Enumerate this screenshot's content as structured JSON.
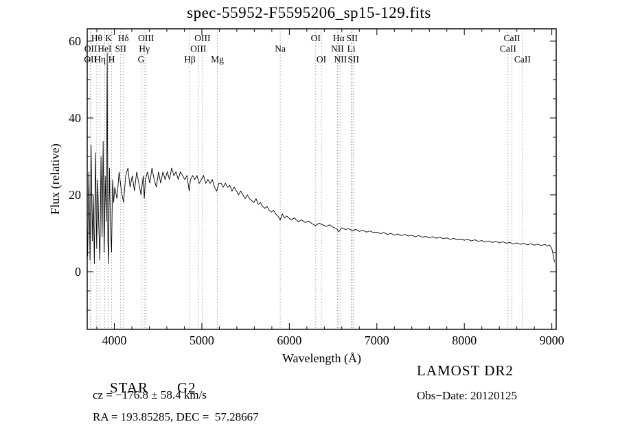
{
  "title": "spec-55952-F5595206_sp15-129.fits",
  "footer": {
    "classification": "STAR",
    "subclass": "G2",
    "survey": "LAMOST DR2",
    "cz": "cz = −176.8 ± 58.4 km/s",
    "obs_date": "Obs−Date: 20120125",
    "ra_dec": "RA = 193.85285, DEC =  57.28667"
  },
  "chart_data": {
    "type": "line",
    "title": "spec-55952-F5595206_sp15-129.fits",
    "xlabel": "Wavelength (Å)",
    "ylabel": "Flux (relative)",
    "xlim": [
      3690,
      9050
    ],
    "ylim": [
      -15,
      63.2
    ],
    "x_ticks": [
      4000,
      5000,
      6000,
      7000,
      8000,
      9000
    ],
    "y_ticks": [
      0,
      20,
      40,
      60
    ],
    "grid": false,
    "line_color": "#000000",
    "marker_line_color": "#999999",
    "legend": "none",
    "spectral_lines": [
      {
        "label": "OII",
        "wavelength": 3727,
        "row": 3
      },
      {
        "label": "OII",
        "wavelength": 3730,
        "row": 2
      },
      {
        "label": "Hθ",
        "wavelength": 3799,
        "row": 1
      },
      {
        "label": "Hη",
        "wavelength": 3836,
        "row": 3
      },
      {
        "label": "HeI",
        "wavelength": 3889,
        "row": 2
      },
      {
        "label": "K",
        "wavelength": 3934,
        "row": 1
      },
      {
        "label": "H",
        "wavelength": 3969,
        "row": 3
      },
      {
        "label": "SII",
        "wavelength": 4072,
        "row": 2
      },
      {
        "label": "Hδ",
        "wavelength": 4103,
        "row": 1
      },
      {
        "label": "G",
        "wavelength": 4306,
        "row": 3
      },
      {
        "label": "Hγ",
        "wavelength": 4342,
        "row": 2
      },
      {
        "label": "OIII",
        "wavelength": 4363,
        "row": 1
      },
      {
        "label": "Hβ",
        "wavelength": 4863,
        "row": 3
      },
      {
        "label": "OIII",
        "wavelength": 4960,
        "row": 2
      },
      {
        "label": "OIII",
        "wavelength": 5008,
        "row": 1
      },
      {
        "label": "Mg",
        "wavelength": 5177,
        "row": 3
      },
      {
        "label": "Na",
        "wavelength": 5896,
        "row": 2
      },
      {
        "label": "OI",
        "wavelength": 6302,
        "row": 1
      },
      {
        "label": "OI",
        "wavelength": 6366,
        "row": 3
      },
      {
        "label": "NII",
        "wavelength": 6550,
        "row": 2
      },
      {
        "label": "Hα",
        "wavelength": 6565,
        "row": 1
      },
      {
        "label": "NII",
        "wavelength": 6585,
        "row": 3
      },
      {
        "label": "Li",
        "wavelength": 6708,
        "row": 2
      },
      {
        "label": "SII",
        "wavelength": 6718,
        "row": 1
      },
      {
        "label": "SII",
        "wavelength": 6733,
        "row": 3
      },
      {
        "label": "CaII",
        "wavelength": 8500,
        "row": 2
      },
      {
        "label": "CaII",
        "wavelength": 8544,
        "row": 1
      },
      {
        "label": "CaII",
        "wavelength": 8665,
        "row": 3
      }
    ],
    "spectrum": [
      [
        3695,
        4
      ],
      [
        3710,
        26
      ],
      [
        3722,
        3
      ],
      [
        3735,
        33
      ],
      [
        3748,
        8
      ],
      [
        3760,
        20
      ],
      [
        3772,
        2
      ],
      [
        3785,
        31
      ],
      [
        3798,
        6
      ],
      [
        3810,
        24
      ],
      [
        3822,
        12
      ],
      [
        3835,
        3
      ],
      [
        3848,
        30
      ],
      [
        3860,
        9
      ],
      [
        3872,
        34
      ],
      [
        3884,
        5
      ],
      [
        3896,
        25
      ],
      [
        3908,
        13
      ],
      [
        3918,
        57
      ],
      [
        3926,
        8
      ],
      [
        3934,
        2
      ],
      [
        3944,
        27
      ],
      [
        3956,
        12
      ],
      [
        3968,
        5
      ],
      [
        3980,
        24
      ],
      [
        3992,
        18
      ],
      [
        4005,
        22
      ],
      [
        4030,
        19
      ],
      [
        4055,
        26
      ],
      [
        4080,
        21
      ],
      [
        4105,
        18
      ],
      [
        4130,
        25
      ],
      [
        4155,
        27
      ],
      [
        4180,
        22
      ],
      [
        4205,
        25
      ],
      [
        4230,
        21
      ],
      [
        4255,
        26
      ],
      [
        4280,
        23
      ],
      [
        4305,
        20
      ],
      [
        4330,
        25
      ],
      [
        4342,
        19
      ],
      [
        4355,
        24
      ],
      [
        4380,
        26
      ],
      [
        4405,
        23
      ],
      [
        4430,
        27
      ],
      [
        4455,
        24
      ],
      [
        4480,
        22
      ],
      [
        4505,
        26
      ],
      [
        4530,
        23
      ],
      [
        4555,
        26
      ],
      [
        4580,
        24
      ],
      [
        4605,
        26
      ],
      [
        4630,
        24
      ],
      [
        4655,
        27
      ],
      [
        4680,
        25
      ],
      [
        4705,
        26
      ],
      [
        4730,
        24
      ],
      [
        4755,
        26
      ],
      [
        4780,
        25
      ],
      [
        4805,
        24
      ],
      [
        4830,
        25
      ],
      [
        4855,
        21
      ],
      [
        4870,
        24
      ],
      [
        4895,
        25
      ],
      [
        4920,
        24
      ],
      [
        4945,
        25
      ],
      [
        4970,
        23
      ],
      [
        4995,
        24
      ],
      [
        5020,
        25
      ],
      [
        5045,
        23
      ],
      [
        5070,
        24
      ],
      [
        5095,
        23
      ],
      [
        5120,
        24
      ],
      [
        5145,
        22
      ],
      [
        5170,
        21
      ],
      [
        5195,
        23
      ],
      [
        5220,
        23
      ],
      [
        5245,
        22
      ],
      [
        5270,
        23
      ],
      [
        5295,
        22
      ],
      [
        5320,
        22.5
      ],
      [
        5345,
        21
      ],
      [
        5370,
        22
      ],
      [
        5395,
        21
      ],
      [
        5420,
        20
      ],
      [
        5445,
        21
      ],
      [
        5470,
        20
      ],
      [
        5495,
        19
      ],
      [
        5520,
        20
      ],
      [
        5545,
        19
      ],
      [
        5570,
        18.5
      ],
      [
        5595,
        18
      ],
      [
        5620,
        19
      ],
      [
        5645,
        17.5
      ],
      [
        5670,
        18
      ],
      [
        5695,
        17
      ],
      [
        5720,
        16.5
      ],
      [
        5745,
        17
      ],
      [
        5770,
        16
      ],
      [
        5795,
        15.5
      ],
      [
        5820,
        16
      ],
      [
        5845,
        15
      ],
      [
        5870,
        14.5
      ],
      [
        5895,
        13.5
      ],
      [
        5920,
        15
      ],
      [
        5945,
        14
      ],
      [
        5970,
        14.5
      ],
      [
        5995,
        14
      ],
      [
        6020,
        13.5
      ],
      [
        6060,
        14
      ],
      [
        6100,
        13
      ],
      [
        6140,
        13.5
      ],
      [
        6180,
        12.8
      ],
      [
        6220,
        13.2
      ],
      [
        6260,
        12.5
      ],
      [
        6300,
        12
      ],
      [
        6340,
        12.6
      ],
      [
        6380,
        12.2
      ],
      [
        6420,
        11.8
      ],
      [
        6460,
        12.2
      ],
      [
        6500,
        11.6
      ],
      [
        6540,
        11.2
      ],
      [
        6565,
        10.4
      ],
      [
        6600,
        11.4
      ],
      [
        6640,
        11
      ],
      [
        6680,
        11.2
      ],
      [
        6720,
        10.7
      ],
      [
        6760,
        11
      ],
      [
        6800,
        10.5
      ],
      [
        6840,
        10.8
      ],
      [
        6880,
        10.3
      ],
      [
        6920,
        10.6
      ],
      [
        6960,
        10.2
      ],
      [
        7000,
        10.3
      ],
      [
        7040,
        9.9
      ],
      [
        7080,
        10.2
      ],
      [
        7120,
        9.7
      ],
      [
        7160,
        10
      ],
      [
        7200,
        9.5
      ],
      [
        7240,
        9.8
      ],
      [
        7280,
        9.4
      ],
      [
        7320,
        9.7
      ],
      [
        7360,
        9.3
      ],
      [
        7400,
        9.5
      ],
      [
        7440,
        9.1
      ],
      [
        7480,
        9.4
      ],
      [
        7520,
        9
      ],
      [
        7560,
        9.2
      ],
      [
        7600,
        8.8
      ],
      [
        7640,
        9.1
      ],
      [
        7680,
        8.7
      ],
      [
        7720,
        9
      ],
      [
        7760,
        8.6
      ],
      [
        7800,
        8.8
      ],
      [
        7840,
        8.4
      ],
      [
        7880,
        8.7
      ],
      [
        7920,
        8.3
      ],
      [
        7960,
        8.5
      ],
      [
        8000,
        8.2
      ],
      [
        8040,
        8.4
      ],
      [
        8080,
        8
      ],
      [
        8120,
        8.3
      ],
      [
        8160,
        7.9
      ],
      [
        8200,
        8.1
      ],
      [
        8240,
        7.7
      ],
      [
        8280,
        8
      ],
      [
        8320,
        7.6
      ],
      [
        8360,
        7.9
      ],
      [
        8400,
        7.5
      ],
      [
        8440,
        7.8
      ],
      [
        8480,
        7.4
      ],
      [
        8520,
        7.6
      ],
      [
        8560,
        7.2
      ],
      [
        8600,
        7.5
      ],
      [
        8640,
        7.1
      ],
      [
        8680,
        7.4
      ],
      [
        8720,
        7
      ],
      [
        8760,
        7.3
      ],
      [
        8800,
        6.9
      ],
      [
        8840,
        7.2
      ],
      [
        8880,
        6.8
      ],
      [
        8920,
        7.1
      ],
      [
        8950,
        6.7
      ],
      [
        8975,
        7
      ],
      [
        9000,
        6
      ],
      [
        9015,
        4.5
      ],
      [
        9030,
        2.5
      ]
    ]
  }
}
